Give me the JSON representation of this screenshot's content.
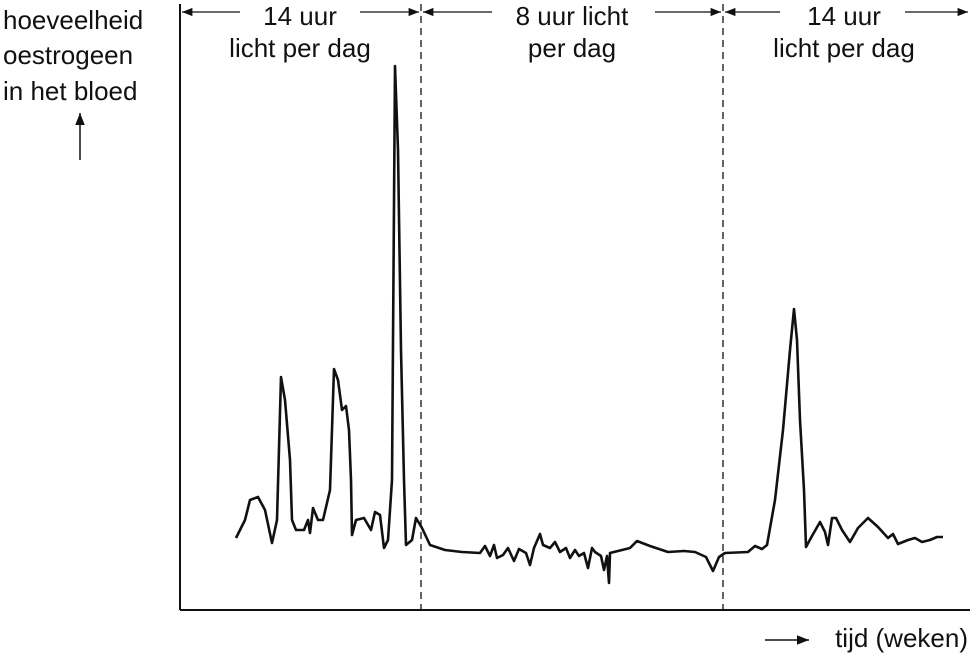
{
  "y_axis_label": [
    "hoeveelheid",
    "oestrogeen",
    "in het bloed"
  ],
  "x_axis_label": "tijd (weken)",
  "periods": [
    {
      "label": [
        "14 uur",
        "licht per dag"
      ]
    },
    {
      "label": [
        "8 uur licht",
        "per dag"
      ]
    },
    {
      "label": [
        "14 uur",
        "licht per dag"
      ]
    }
  ]
}
